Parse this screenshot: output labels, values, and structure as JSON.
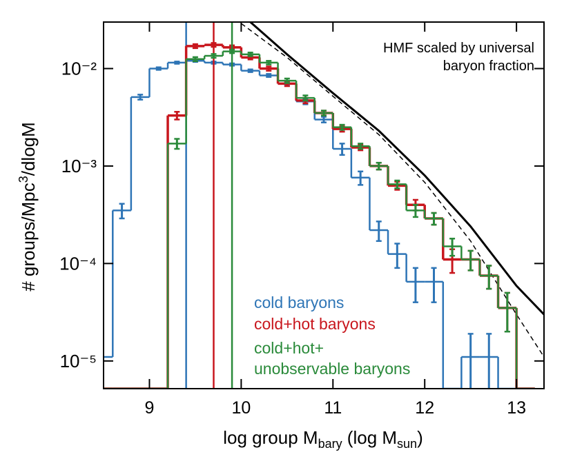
{
  "chart_data": {
    "type": "histogram",
    "xlabel": [
      "log group M",
      "bary",
      " (log M",
      "sun",
      ")"
    ],
    "ylabel": [
      "# groups/Mpc",
      "3",
      "/dlogM"
    ],
    "annotation": [
      "HMF scaled by universal",
      "baryon fraction"
    ],
    "xlim": [
      8.5,
      13.3
    ],
    "xticks": [
      9,
      10,
      11,
      12,
      13
    ],
    "ylim": [
      5.2e-06,
      0.03
    ],
    "log_y": true,
    "yticks": [
      {
        "value": 0.01,
        "label": "10⁻²"
      },
      {
        "value": 0.001,
        "label": "10⁻³"
      },
      {
        "value": 0.0001,
        "label": "10⁻⁴"
      },
      {
        "value": 1e-05,
        "label": "10⁻⁵"
      }
    ],
    "bins": [
      8.4,
      8.6,
      8.8,
      9.0,
      9.2,
      9.4,
      9.6,
      9.8,
      10.0,
      10.2,
      10.4,
      10.6,
      10.8,
      11.0,
      11.2,
      11.4,
      11.6,
      11.8,
      12.0,
      12.2,
      12.4,
      12.6,
      12.8,
      13.0,
      13.2
    ],
    "series": [
      {
        "name": "cold baryons",
        "color": "#2e75b6",
        "vline": 9.4,
        "values": [
          1.1e-05,
          0.00035,
          0.0051,
          0.01,
          0.0115,
          0.012,
          0.0115,
          0.011,
          0.0095,
          0.0085,
          0.007,
          0.0046,
          0.003,
          0.0015,
          0.00076,
          0.00022,
          0.000125,
          6.5e-05,
          6.5e-05,
          0,
          1.1e-05,
          1.1e-05,
          0,
          0
        ],
        "errors": [
          0,
          6e-05,
          0.0003,
          0.0003,
          0.0003,
          0.0003,
          0.0003,
          0.0003,
          0.0003,
          0.0003,
          0.0003,
          0.0003,
          0.0002,
          0.0002,
          0.00012,
          5e-05,
          3.5e-05,
          2.5e-05,
          2.5e-05,
          0,
          8e-06,
          8e-06,
          0,
          0
        ]
      },
      {
        "name": "cold+hot baryons",
        "color": "#c8161d",
        "vline": 9.7,
        "values": [
          0,
          0,
          0,
          0,
          0.0033,
          0.017,
          0.0175,
          0.0165,
          0.013,
          0.01,
          0.007,
          0.0047,
          0.0035,
          0.0024,
          0.00155,
          0.001,
          0.00063,
          0.0004,
          0.00029,
          0.00011,
          0.00011,
          7.5e-05,
          3.5e-05,
          0
        ],
        "errors": [
          0,
          0,
          0,
          0,
          0.0003,
          0.0008,
          0.0008,
          0.0008,
          0.0006,
          0.0005,
          0.0004,
          0.0003,
          0.0002,
          0.00015,
          0.0001,
          8e-05,
          6e-05,
          5e-05,
          4e-05,
          3e-05,
          2.5e-05,
          2e-05,
          1.5e-05,
          0
        ]
      },
      {
        "name": "cold+hot+\nunobservable baryons",
        "color": "#2a8a3a",
        "vline": 9.9,
        "values": [
          0,
          0,
          0,
          0,
          0.0017,
          0.0125,
          0.0135,
          0.015,
          0.014,
          0.0115,
          0.0075,
          0.005,
          0.0035,
          0.0025,
          0.0016,
          0.001,
          0.00065,
          0.00035,
          0.00029,
          0.00015,
          0.00011,
          7.5e-05,
          3.5e-05,
          0
        ],
        "errors": [
          0,
          0,
          0,
          0,
          0.0002,
          0.0006,
          0.0006,
          0.0006,
          0.0006,
          0.0005,
          0.0004,
          0.0003,
          0.0002,
          0.00015,
          0.0001,
          8e-05,
          6e-05,
          5e-05,
          4e-05,
          3e-05,
          2.5e-05,
          2e-05,
          1.5e-05,
          0
        ]
      }
    ],
    "curves": [
      {
        "style": "solid",
        "color": "#000000",
        "x": [
          10.1,
          10.5,
          11,
          11.5,
          12,
          12.5,
          13,
          13.3
        ],
        "values": [
          0.03,
          0.014,
          0.0056,
          0.0023,
          0.0008,
          0.00024,
          5.9e-05,
          3e-05
        ]
      },
      {
        "style": "dashed",
        "color": "#000000",
        "x": [
          10.0,
          10.5,
          11,
          11.5,
          12,
          12.5,
          13,
          13.3
        ],
        "values": [
          0.029,
          0.013,
          0.0052,
          0.0021,
          0.00068,
          0.00017,
          3e-05,
          1.1e-05
        ]
      }
    ]
  }
}
